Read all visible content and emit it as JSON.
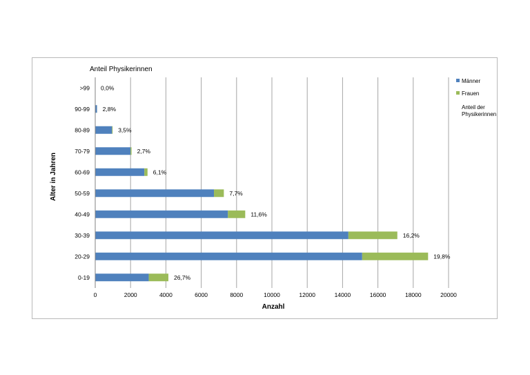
{
  "chart_data": {
    "type": "bar",
    "orientation": "horizontal",
    "stacked": true,
    "title": "Anteil Physikerinnen",
    "xlabel": "Anzahl",
    "ylabel": "Alter in Jahren",
    "xlim": [
      0,
      20000
    ],
    "x_ticks": [
      "0",
      "2000",
      "4000",
      "6000",
      "8000",
      "10000",
      "12000",
      "14000",
      "16000",
      "18000",
      "20000"
    ],
    "grid": true,
    "categories": [
      ">99",
      "90-99",
      "80-89",
      "70-79",
      "60-69",
      "50-59",
      "40-49",
      "30-39",
      "20-29",
      "0-19"
    ],
    "series": [
      {
        "name": "Männer",
        "color": "#4f81bd",
        "values": [
          0,
          100,
          950,
          2000,
          2780,
          6720,
          7510,
          14330,
          15110,
          3030
        ]
      },
      {
        "name": "Frauen",
        "color": "#9bbb59",
        "values": [
          0,
          3,
          35,
          55,
          180,
          560,
          980,
          2770,
          3730,
          1110
        ]
      }
    ],
    "data_labels": [
      "0,0%",
      "2,8%",
      "3,5%",
      "2,7%",
      "6,1%",
      "7,7%",
      "11,6%",
      "16,2%",
      "19,8%",
      "26,7%"
    ],
    "legend": {
      "position": "right",
      "entries": [
        "Männer",
        "Frauen"
      ],
      "extra_entry": [
        "Anteil der",
        "Physikerinnen"
      ]
    }
  }
}
